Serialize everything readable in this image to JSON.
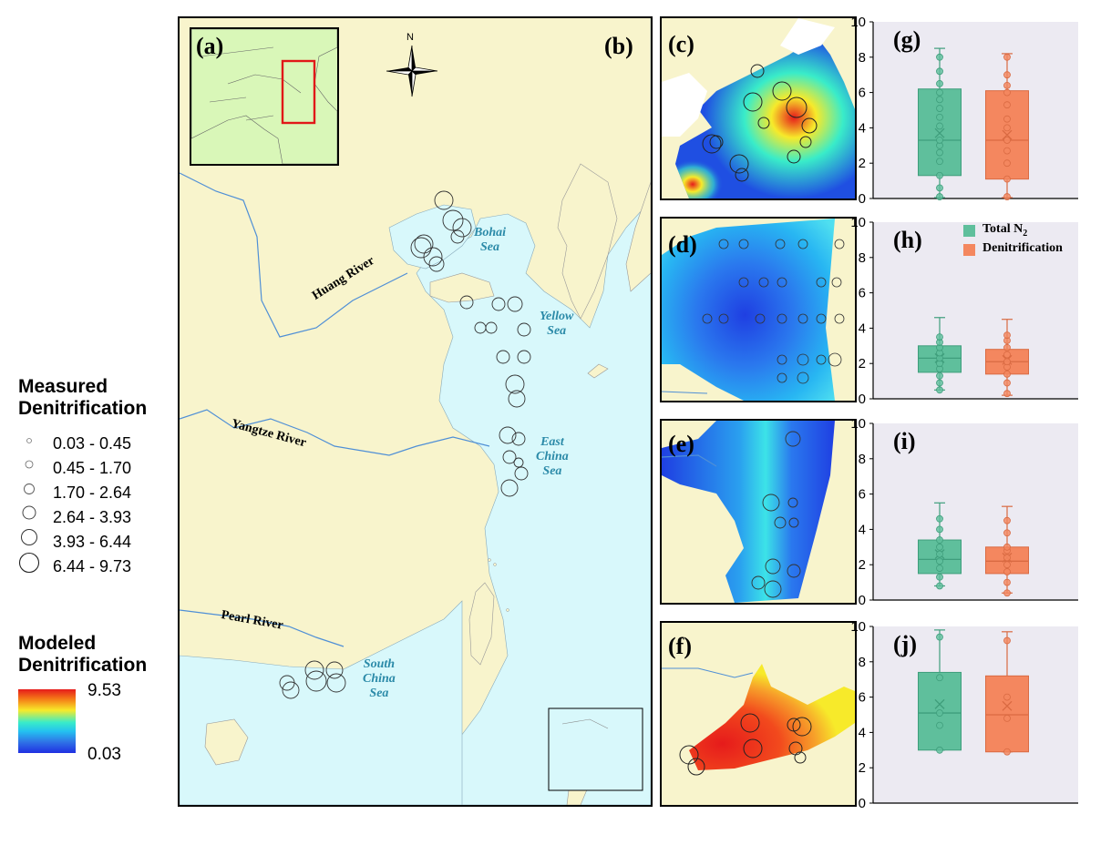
{
  "colors": {
    "land": "#f8f4cc",
    "sea": "#d8f8fb",
    "inset_land": "#d9f7b8",
    "inset_box": "#e11818",
    "river": "#4f8fd6",
    "sea_label": "#2b8aa8",
    "total_n2": "#5fbf9c",
    "denitrification": "#f4875f",
    "plot_bg": "#eceaf2"
  },
  "legend": {
    "measured_title_1": "Measured",
    "measured_title_2": "Denitrification",
    "measured_classes": [
      "0.03 - 0.45",
      "0.45 - 1.70",
      "1.70 - 2.64",
      "2.64 - 3.93",
      "3.93 - 6.44",
      "6.44 - 9.73"
    ],
    "modeled_title_1": "Modeled",
    "modeled_title_2": "Denitrification",
    "modeled_max": "9.53",
    "modeled_min": "0.03",
    "colorbar_icon": "rainbow-colorbar"
  },
  "map": {
    "panel_a": "(a)",
    "panel_b": "(b)",
    "panel_c": "(c)",
    "panel_d": "(d)",
    "panel_e": "(e)",
    "panel_f": "(f)",
    "north": "N",
    "north_icon": "compass-rose-icon",
    "seas": {
      "bohai_1": "Bohai",
      "bohai_2": "Sea",
      "yellow_1": "Yellow",
      "yellow_2": "Sea",
      "east_1": "East",
      "east_2": "China",
      "east_3": "Sea",
      "south_1": "South",
      "south_2": "China",
      "south_3": "Sea"
    },
    "rivers": {
      "huang": "Huang River",
      "yangtze": "Yangtze River",
      "pearl": "Pearl River"
    }
  },
  "chart_data": [
    {
      "type": "box",
      "panel": "(g)",
      "ylim": [
        0,
        10
      ],
      "yticks": [
        0,
        2,
        4,
        6,
        8,
        10
      ],
      "series": [
        {
          "name": "Total N2",
          "whisker_low": 0.05,
          "q1": 1.3,
          "median": 3.3,
          "mean": 3.7,
          "q3": 6.2,
          "whisker_high": 8.5,
          "points": [
            0.1,
            0.6,
            1.3,
            2.1,
            2.6,
            3.0,
            3.3,
            4.1,
            4.6,
            5.1,
            5.6,
            6.0,
            6.5,
            7.2,
            8.0
          ]
        },
        {
          "name": "Denitrification",
          "whisker_low": 0.05,
          "q1": 1.1,
          "median": 3.3,
          "mean": 3.6,
          "q3": 6.1,
          "whisker_high": 8.2,
          "points": [
            0.1,
            1.1,
            2.0,
            2.7,
            3.3,
            4.0,
            4.5,
            5.3,
            6.0,
            6.4,
            7.0,
            8.0
          ]
        }
      ]
    },
    {
      "type": "box",
      "panel": "(h)",
      "ylim": [
        0,
        10
      ],
      "yticks": [
        0,
        2,
        4,
        6,
        8,
        10
      ],
      "legend": {
        "total_prefix": "Total N",
        "total_sub": "2",
        "denit": "Denitrification"
      },
      "series": [
        {
          "name": "Total N2",
          "whisker_low": 0.5,
          "q1": 1.5,
          "median": 2.3,
          "mean": 2.3,
          "q3": 3.0,
          "whisker_high": 4.6,
          "points": [
            0.5,
            0.9,
            1.3,
            1.7,
            2.0,
            2.3,
            2.6,
            2.9,
            3.2,
            3.5
          ]
        },
        {
          "name": "Denitrification",
          "whisker_low": 0.2,
          "q1": 1.4,
          "median": 2.1,
          "mean": 2.2,
          "q3": 2.8,
          "whisker_high": 4.5,
          "points": [
            0.3,
            0.9,
            1.4,
            1.8,
            2.1,
            2.5,
            2.9,
            3.3,
            3.6
          ]
        }
      ]
    },
    {
      "type": "box",
      "panel": "(i)",
      "ylim": [
        0,
        10
      ],
      "yticks": [
        0,
        2,
        4,
        6,
        8,
        10
      ],
      "series": [
        {
          "name": "Total N2",
          "whisker_low": 0.8,
          "q1": 1.5,
          "median": 2.3,
          "mean": 2.6,
          "q3": 3.4,
          "whisker_high": 5.5,
          "points": [
            0.8,
            1.3,
            1.8,
            2.2,
            2.6,
            3.0,
            3.4,
            4.0,
            4.6
          ]
        },
        {
          "name": "Denitrification",
          "whisker_low": 0.4,
          "q1": 1.5,
          "median": 2.2,
          "mean": 2.4,
          "q3": 3.0,
          "whisker_high": 5.3,
          "points": [
            0.4,
            1.0,
            1.6,
            2.0,
            2.4,
            2.8,
            3.0,
            3.8,
            4.5
          ]
        }
      ]
    },
    {
      "type": "box",
      "panel": "(j)",
      "ylim": [
        0,
        10
      ],
      "yticks": [
        0,
        2,
        4,
        6,
        8,
        10
      ],
      "series": [
        {
          "name": "Total N2",
          "whisker_low": 3.0,
          "q1": 3.0,
          "median": 5.1,
          "mean": 5.6,
          "q3": 7.4,
          "whisker_high": 9.8,
          "points": [
            3.0,
            4.4,
            5.1,
            7.1,
            9.4
          ]
        },
        {
          "name": "Denitrification",
          "whisker_low": 2.9,
          "q1": 2.9,
          "median": 5.0,
          "mean": 5.5,
          "q3": 7.2,
          "whisker_high": 9.7,
          "points": [
            2.9,
            4.8,
            6.0,
            9.2
          ]
        }
      ]
    }
  ]
}
